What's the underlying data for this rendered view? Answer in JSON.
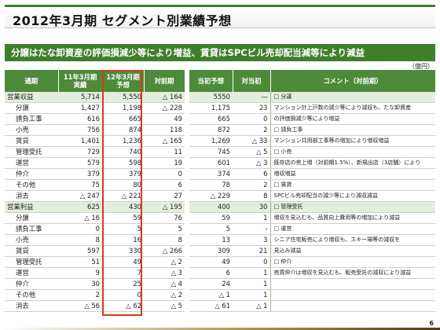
{
  "title": "2012年3月期 セグメント別業績予想",
  "subtitle": "分譲はたな卸資産の評価損減少等により増益、賃貸はSPCビル売却配当減等により減益",
  "unit": "（億円）",
  "page_number": "6",
  "headers": {
    "segment": "通期",
    "actual_line1": "11年3月期",
    "actual_line2": "実績",
    "forecast_line1": "12年3月期",
    "forecast_line2": "予想",
    "yoy": "対前期",
    "initial": "当初予想",
    "vs_initial": "対当初",
    "comment": "コメント（対前期）"
  },
  "rows": [
    {
      "label": "営業収益",
      "group": true,
      "actual": "5,714",
      "forecast": "5,550",
      "yoy": "△ 164",
      "initial": "5550",
      "vs_initial": "―",
      "comment": "□ 分譲"
    },
    {
      "label": "分譲",
      "group": false,
      "actual": "1,427",
      "forecast": "1,198",
      "yoy": "△ 228",
      "initial": "1,175",
      "vs_initial": "23",
      "comment": "マンション計上戸数の減少等により減収も、たな卸資産"
    },
    {
      "label": "請負工事",
      "group": false,
      "actual": "616",
      "forecast": "665",
      "yoy": "49",
      "initial": "665",
      "vs_initial": "0",
      "comment": "の評価損減少等により増益"
    },
    {
      "label": "小売",
      "group": false,
      "actual": "756",
      "forecast": "874",
      "yoy": "118",
      "initial": "872",
      "vs_initial": "2",
      "comment": "□ 請負工事"
    },
    {
      "label": "賃貸",
      "group": false,
      "actual": "1,401",
      "forecast": "1,236",
      "yoy": "△ 165",
      "initial": "1,269",
      "vs_initial": "△ 33",
      "comment": "マンション共用部工事等の増加により増収増益"
    },
    {
      "label": "管理受託",
      "group": false,
      "actual": "729",
      "forecast": "740",
      "yoy": "11",
      "initial": "745",
      "vs_initial": "△ 5",
      "comment": "□ 小売"
    },
    {
      "label": "運営",
      "group": false,
      "actual": "579",
      "forecast": "598",
      "yoy": "19",
      "initial": "601",
      "vs_initial": "△ 3",
      "comment": "既存店の売上増（対前期1.5%）、新規出店（3店舗）により"
    },
    {
      "label": "仲介",
      "group": false,
      "actual": "379",
      "forecast": "379",
      "yoy": "0",
      "initial": "374",
      "vs_initial": "6",
      "comment": "増収増益"
    },
    {
      "label": "その他",
      "group": false,
      "actual": "75",
      "forecast": "80",
      "yoy": "6",
      "initial": "78",
      "vs_initial": "2",
      "comment": "□ 賃貸"
    },
    {
      "label": "消去",
      "group": false,
      "actual": "△ 247",
      "forecast": "△ 221",
      "yoy": "27",
      "initial": "△ 229",
      "vs_initial": "8",
      "comment": "SPCビル売却配当の減少等により減収減益"
    },
    {
      "label": "営業利益",
      "group": true,
      "actual": "625",
      "forecast": "430",
      "yoy": "△ 195",
      "initial": "400",
      "vs_initial": "30",
      "comment": "□ 管理受託"
    },
    {
      "label": "分譲",
      "group": false,
      "actual": "△ 16",
      "forecast": "59",
      "yoy": "76",
      "initial": "59",
      "vs_initial": "1",
      "comment": "増収を見込むも、品質向上費用等の増加により減益"
    },
    {
      "label": "請負工事",
      "group": false,
      "actual": "0",
      "forecast": "5",
      "yoy": "5",
      "initial": "5",
      "vs_initial": "-",
      "comment": "□ 運営"
    },
    {
      "label": "小売",
      "group": false,
      "actual": "8",
      "forecast": "16",
      "yoy": "8",
      "initial": "13",
      "vs_initial": "3",
      "comment": "シニア住宅販売により増収も、スキー場等の減収を"
    },
    {
      "label": "賃貸",
      "group": false,
      "actual": "597",
      "forecast": "330",
      "yoy": "△ 266",
      "initial": "309",
      "vs_initial": "21",
      "comment": "見込み減益"
    },
    {
      "label": "管理受託",
      "group": false,
      "actual": "51",
      "forecast": "49",
      "yoy": "△ 2",
      "initial": "49",
      "vs_initial": "0",
      "comment": "□ 仲介"
    },
    {
      "label": "運営",
      "group": false,
      "actual": "9",
      "forecast": "7",
      "yoy": "△ 3",
      "initial": "6",
      "vs_initial": "1",
      "comment": "売買仲介は増収を見込むも、販売受託の減収により減益"
    },
    {
      "label": "仲介",
      "group": false,
      "actual": "30",
      "forecast": "25",
      "yoy": "△ 4",
      "initial": "24",
      "vs_initial": "1",
      "comment": ""
    },
    {
      "label": "その他",
      "group": false,
      "actual": "2",
      "forecast": "0",
      "yoy": "△ 2",
      "initial": "△ 1",
      "vs_initial": "1",
      "comment": ""
    },
    {
      "label": "消去",
      "group": false,
      "actual": "△ 56",
      "forecast": "△ 62",
      "yoy": "△ 5",
      "initial": "△ 61",
      "vs_initial": "△ 1",
      "comment": ""
    }
  ],
  "colors": {
    "accent_green": "#3f7f2c",
    "header_green": "#4d8a3a",
    "group_row": "#e4eedc",
    "highlight_red": "#d83a1e"
  }
}
